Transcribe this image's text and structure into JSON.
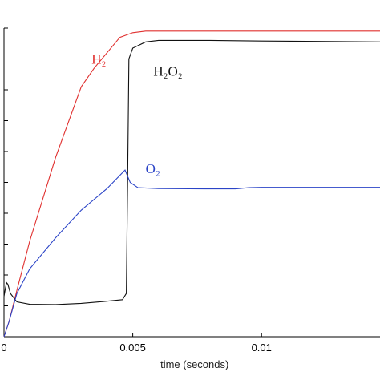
{
  "chart_data": {
    "type": "line",
    "title": "",
    "xlabel": "time (seconds)",
    "ylabel": "",
    "xlim": [
      0,
      0.0146
    ],
    "ylim": [
      0,
      1
    ],
    "grid": false,
    "x_ticks": [
      {
        "value": 0,
        "label": "0"
      },
      {
        "value": 0.005,
        "label": "0.005"
      },
      {
        "value": 0.01,
        "label": "0.01"
      }
    ],
    "y_tick_count": 11,
    "series": [
      {
        "name": "H₂",
        "color": "#e0302f",
        "label_at": [
          0.0034,
          0.885
        ],
        "points": [
          [
            0,
            0
          ],
          [
            0.0002,
            0.05
          ],
          [
            0.0005,
            0.15
          ],
          [
            0.001,
            0.31
          ],
          [
            0.002,
            0.58
          ],
          [
            0.003,
            0.81
          ],
          [
            0.0035,
            0.87
          ],
          [
            0.004,
            0.92
          ],
          [
            0.0045,
            0.97
          ],
          [
            0.005,
            0.985
          ],
          [
            0.0055,
            0.99
          ],
          [
            0.006,
            0.99
          ],
          [
            0.008,
            0.99
          ],
          [
            0.01,
            0.99
          ],
          [
            0.0146,
            0.99
          ]
        ]
      },
      {
        "name": "H₂O₂",
        "color": "#111111",
        "label_at": [
          0.0058,
          0.845
        ],
        "points": [
          [
            0,
            0.13
          ],
          [
            5e-05,
            0.155
          ],
          [
            0.0001,
            0.175
          ],
          [
            0.00015,
            0.17
          ],
          [
            0.00025,
            0.14
          ],
          [
            0.0005,
            0.113
          ],
          [
            0.001,
            0.105
          ],
          [
            0.002,
            0.104
          ],
          [
            0.003,
            0.108
          ],
          [
            0.004,
            0.115
          ],
          [
            0.0046,
            0.12
          ],
          [
            0.00475,
            0.14
          ],
          [
            0.0048,
            0.5
          ],
          [
            0.00485,
            0.9
          ],
          [
            0.005,
            0.935
          ],
          [
            0.0055,
            0.955
          ],
          [
            0.006,
            0.96
          ],
          [
            0.008,
            0.96
          ],
          [
            0.01,
            0.958
          ],
          [
            0.0146,
            0.955
          ]
        ]
      },
      {
        "name": "O₂",
        "color": "#2b44c7",
        "label_at": [
          0.0055,
          0.53
        ],
        "points": [
          [
            0,
            0
          ],
          [
            0.0002,
            0.05
          ],
          [
            0.0005,
            0.14
          ],
          [
            0.001,
            0.22
          ],
          [
            0.002,
            0.32
          ],
          [
            0.003,
            0.41
          ],
          [
            0.004,
            0.48
          ],
          [
            0.0047,
            0.54
          ],
          [
            0.0049,
            0.5
          ],
          [
            0.0052,
            0.483
          ],
          [
            0.006,
            0.48
          ],
          [
            0.008,
            0.479
          ],
          [
            0.009,
            0.479
          ],
          [
            0.0095,
            0.483
          ],
          [
            0.01,
            0.484
          ],
          [
            0.0146,
            0.484
          ]
        ]
      }
    ]
  }
}
